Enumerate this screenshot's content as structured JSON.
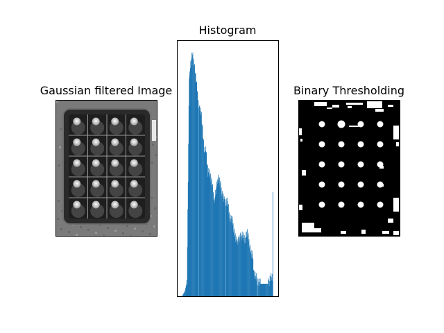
{
  "figure": {
    "panels": [
      {
        "title": "Gaussian filtered Image"
      },
      {
        "title": "Histogram"
      },
      {
        "title": "Binary Thresholding"
      }
    ]
  },
  "colors": {
    "histogram_bar": "#1f77b4",
    "axes": "#000000",
    "image_dark": "#1e1e1e",
    "image_bright": "#f0f0f0",
    "binary_on": "#ffffff",
    "binary_off": "#000000"
  },
  "grid": {
    "rows": 5,
    "cols": 4
  },
  "chart_data": {
    "type": "bar",
    "title": "Histogram",
    "xlabel": "",
    "ylabel": "",
    "xlim": [
      0,
      255
    ],
    "ylim": [
      0,
      1.0
    ],
    "axes_ticks_shown": false,
    "grid": false,
    "profile_x": [
      0,
      8,
      14,
      20,
      24,
      28,
      34,
      38,
      44,
      50,
      54,
      58,
      62,
      66,
      72,
      76,
      82,
      86,
      90,
      96,
      100,
      106,
      110,
      118,
      126,
      132,
      140,
      150,
      160,
      168,
      174,
      180,
      186,
      192,
      196,
      200,
      204,
      210,
      218,
      226,
      232,
      238,
      242,
      246,
      250
    ],
    "profile_y": [
      0.0,
      0.02,
      0.06,
      0.88,
      0.93,
      0.97,
      0.93,
      0.88,
      0.8,
      0.74,
      0.73,
      0.65,
      0.57,
      0.6,
      0.49,
      0.5,
      0.46,
      0.42,
      0.38,
      0.44,
      0.48,
      0.45,
      0.42,
      0.38,
      0.38,
      0.32,
      0.3,
      0.22,
      0.23,
      0.25,
      0.22,
      0.26,
      0.22,
      0.17,
      0.16,
      0.09,
      0.08,
      0.06,
      0.05,
      0.05,
      0.05,
      0.05,
      0.06,
      0.08,
      0.07
    ],
    "gap_bins": [
      46,
      122,
      210
    ],
    "final_spike": {
      "x": 252,
      "y": 0.41
    }
  }
}
